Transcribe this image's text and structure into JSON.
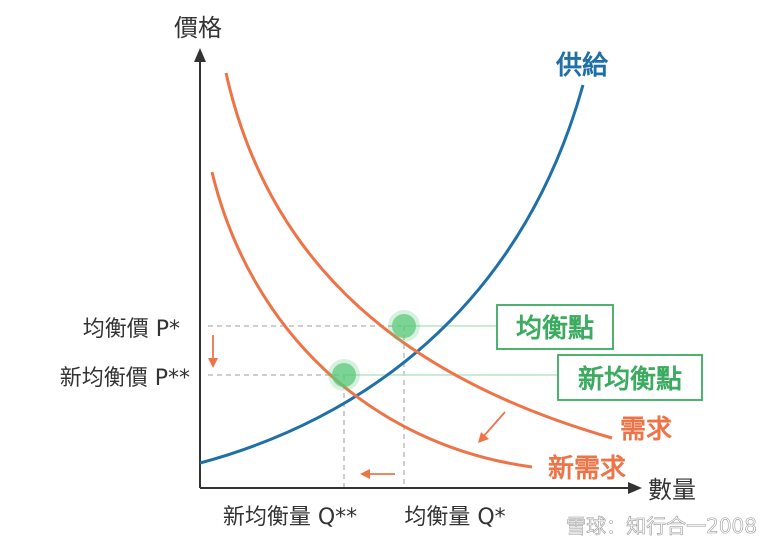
{
  "axes": {
    "y_label": "價格",
    "x_label": "數量"
  },
  "curves": {
    "supply_label": "供給",
    "demand_label": "需求",
    "new_demand_label": "新需求"
  },
  "prices": {
    "p_star": "均衡價 P*",
    "p_double_star": "新均衡價 P**"
  },
  "quantities": {
    "q_double_star": "新均衡量 Q**",
    "q_star": "均衡量 Q*"
  },
  "callouts": {
    "equilibrium": "均衡點",
    "new_equilibrium": "新均衡點"
  },
  "watermark": "雪球：知行合一2008",
  "colors": {
    "supply": "#1f6fa8",
    "demand": "#ee7448",
    "highlight": "#5cc97a",
    "callout_border": "#3bab5f",
    "dashed": "#bdbdbd",
    "axis": "#333333",
    "text": "#333333"
  }
}
